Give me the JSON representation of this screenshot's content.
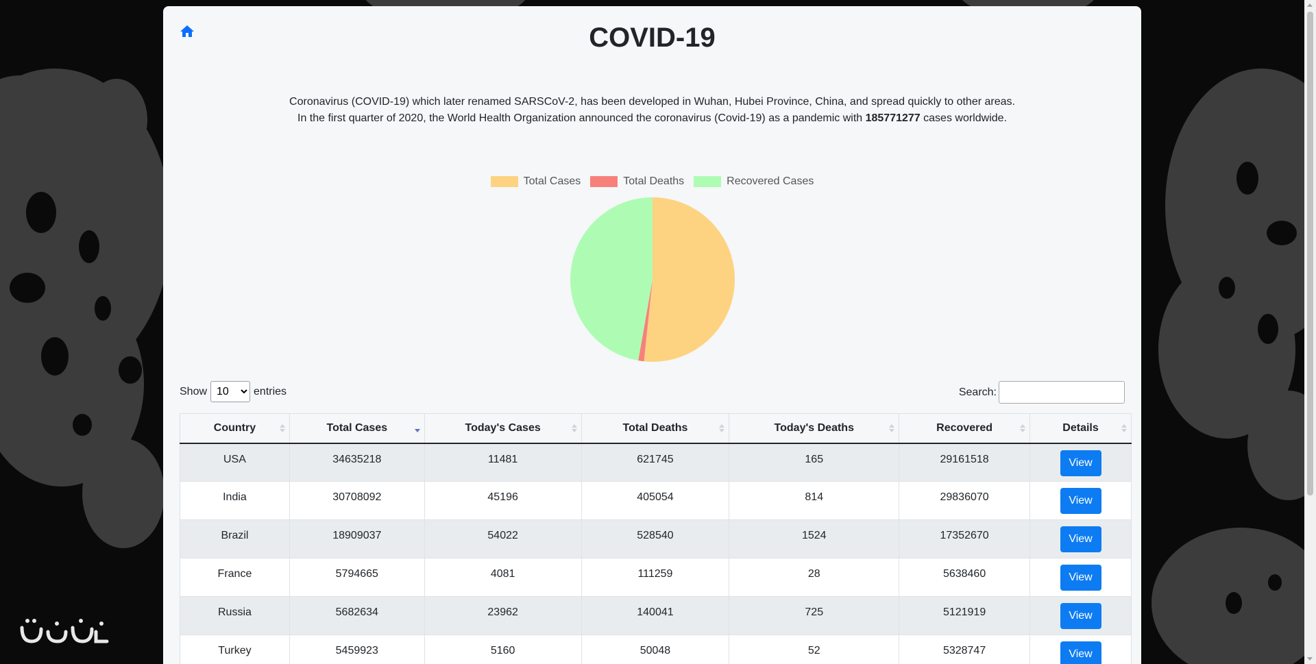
{
  "page": {
    "title": "COVID-19",
    "intro_line1": "Coronavirus (COVID-19) which later renamed SARSCoV-2, has been developed in Wuhan, Hubei Province, China, and spread quickly to other areas.",
    "intro_line2_prefix": "In the first quarter of 2020, the World Health Organization announced the coronavirus (Covid-19) as a pandemic with",
    "worldwide_cases": "185771277",
    "intro_line2_suffix": "cases worldwide."
  },
  "chart_data": {
    "type": "pie",
    "categories": [
      "Total Cases",
      "Total Deaths",
      "Recovered Cases"
    ],
    "values": [
      185771277,
      4010000,
      169800000
    ],
    "colors": [
      "#fdd381",
      "#f8807a",
      "#aefcb3"
    ],
    "legend_position": "top"
  },
  "controls": {
    "show_label": "Show",
    "entries_label": "entries",
    "length_options": [
      "10"
    ],
    "selected_length": "10",
    "search_label": "Search:",
    "search_value": ""
  },
  "table": {
    "columns": [
      "Country",
      "Total Cases",
      "Today's Cases",
      "Total Deaths",
      "Today's Deaths",
      "Recovered",
      "Details"
    ],
    "sorted_column": "Total Cases",
    "sort_direction": "descending",
    "view_label": "View",
    "rows": [
      [
        "USA",
        "34635218",
        "11481",
        "621745",
        "165",
        "29161518"
      ],
      [
        "India",
        "30708092",
        "45196",
        "405054",
        "814",
        "29836070"
      ],
      [
        "Brazil",
        "18909037",
        "54022",
        "528540",
        "1524",
        "17352670"
      ],
      [
        "France",
        "5794665",
        "4081",
        "111259",
        "28",
        "5638460"
      ],
      [
        "Russia",
        "5682634",
        "23962",
        "140041",
        "725",
        "5121919"
      ],
      [
        "Turkey",
        "5459923",
        "5160",
        "50048",
        "52",
        "5328747"
      ]
    ]
  },
  "icons": {
    "home": "home-icon",
    "logo": "watermark-logo"
  }
}
